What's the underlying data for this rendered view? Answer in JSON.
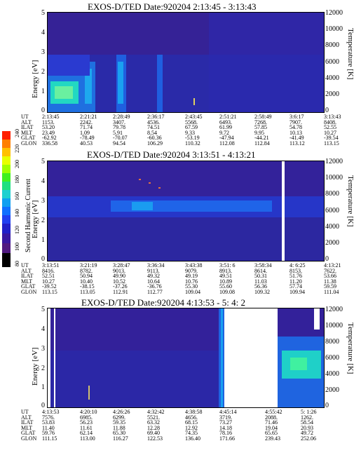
{
  "colorbar": {
    "label": "Second Harmonic Current",
    "ticks": [
      "240",
      "220",
      "200",
      "180",
      "160",
      "140",
      "120",
      "100",
      "80"
    ]
  },
  "panels": [
    {
      "title": "EXOS-D/TED   Date:920204   2:13:45 - 3:13:43",
      "ylabel": "Energy [eV]",
      "y2label": "Temperature [K]",
      "yticks": [
        "5",
        "4",
        "3",
        "2",
        "1",
        "0"
      ],
      "y2ticks": [
        "12000",
        "10000",
        "8000",
        "6000",
        "4000",
        "2000",
        "0"
      ],
      "rows": [
        {
          "name": "UT",
          "values": [
            "2:13:45",
            "2:21:21",
            "2:28:49",
            "2:36:17",
            "2:43:45",
            "2:51:21",
            "2:58:49",
            "3:6:17",
            "3:13:43"
          ]
        },
        {
          "name": "ALT",
          "values": [
            "1153.",
            "2242.",
            "3407.",
            "4536.",
            "5568.",
            "6493.",
            "7268.",
            "7907.",
            "8408."
          ]
        },
        {
          "name": "ILAT",
          "values": [
            "53.20",
            "71.74",
            "79.78",
            "74.51",
            "67.59",
            "61.99",
            "57.85",
            "54.78",
            "52.55"
          ]
        },
        {
          "name": "MLT",
          "values": [
            "23.49",
            "1.09",
            "5.91",
            "8.54",
            "9.33",
            "9.72",
            "9.95",
            "10.13",
            "10.27"
          ]
        },
        {
          "name": "GLAT",
          "values": [
            "-62.92",
            "-78.49",
            "-70.07",
            "-60.36",
            "-53.19",
            "-47.94",
            "-44.21",
            "-41.49",
            "-39.54"
          ]
        },
        {
          "name": "GLON",
          "values": [
            "336.58",
            "40.53",
            "94.54",
            "106.29",
            "110.32",
            "112.08",
            "112.84",
            "113.12",
            "113.15"
          ]
        }
      ]
    },
    {
      "title": "EXOS-D/TED   Date:920204   3:13:51 - 4:13:21",
      "ylabel": "Energy [eV]",
      "y2label": "Temperature [K]",
      "yticks": [
        "5",
        "4",
        "3",
        "2",
        "1",
        "0"
      ],
      "y2ticks": [
        "12000",
        "10000",
        "8000",
        "6000",
        "4000",
        "2000",
        "0"
      ],
      "rows": [
        {
          "name": "UT",
          "values": [
            "3:13:51",
            "3:21:19",
            "3:28:47",
            "3:36:34",
            "3:43:38",
            "3:51: 6",
            "3:58:34",
            "4: 6:25",
            "4:13:21"
          ]
        },
        {
          "name": "ALT",
          "values": [
            "8416.",
            "8782.",
            "9013.",
            "9113.",
            "9079.",
            "8913.",
            "8614.",
            "8153.",
            "7622."
          ]
        },
        {
          "name": "ILAT",
          "values": [
            "52.51",
            "50.94",
            "49.90",
            "49.32",
            "49.19",
            "49.51",
            "50.31",
            "51.76",
            "53.66"
          ]
        },
        {
          "name": "MLT",
          "values": [
            "10.27",
            "10.40",
            "10.52",
            "10.64",
            "10.76",
            "10.89",
            "11.03",
            "11.20",
            "11.38"
          ]
        },
        {
          "name": "GLAT",
          "values": [
            "-39.52",
            "-38.15",
            "-37.26",
            "-36.76",
            "55.30",
            "55.60",
            "56.36",
            "57.74",
            "59.59"
          ]
        },
        {
          "name": "GLON",
          "values": [
            "113.15",
            "113.05",
            "112.91",
            "112.77",
            "109.04",
            "109.08",
            "109.32",
            "109.94",
            "111.04"
          ]
        }
      ]
    },
    {
      "title": "EXOS-D/TED   Date:920204   4:13:53 - 5: 4: 2",
      "ylabel": "Energy [eV]",
      "y2label": "Temperature [K]",
      "yticks": [
        "5",
        "4",
        "3",
        "2",
        "1",
        "0"
      ],
      "y2ticks": [
        "12000",
        "10000",
        "8000",
        "6000",
        "4000",
        "2000",
        "0"
      ],
      "rows": [
        {
          "name": "UT",
          "values": [
            "4:13:53",
            "4:20:10",
            "4:26:26",
            "4:32:42",
            "4:38:58",
            "4:45:14",
            "4:55:42",
            "5: 1:26"
          ]
        },
        {
          "name": "ALT",
          "values": [
            "7576.",
            "6985.",
            "6299.",
            "5521.",
            "4656.",
            "3719.",
            "2088.",
            "1262."
          ]
        },
        {
          "name": "ILAT",
          "values": [
            "53.83",
            "56.23",
            "59.35",
            "63.32",
            "68.15",
            "73.27",
            "71.46",
            "58.54"
          ]
        },
        {
          "name": "MLT",
          "values": [
            "11.40",
            "11.61",
            "11.88",
            "12.28",
            "12.92",
            "14.18",
            "19.04",
            "20.93"
          ]
        },
        {
          "name": "GLAT",
          "values": [
            "59.76",
            "62.14",
            "65.30",
            "69.40",
            "74.35",
            "78.16",
            "65.65",
            "49.72"
          ]
        },
        {
          "name": "GLON",
          "values": [
            "111.15",
            "113.00",
            "116.27",
            "122.53",
            "136.40",
            "171.66",
            "239.43",
            "252.06"
          ]
        }
      ]
    }
  ],
  "chart_data": {
    "type": "heatmap",
    "panels": [
      {
        "title": "EXOS-D/TED   Date:920204   2:13:45 - 3:13:43",
        "xlabel": "UT",
        "ylabel": "Energy [eV]",
        "y2label": "Temperature [K]",
        "ylim": [
          0,
          5
        ],
        "y2lim": [
          0,
          12000
        ]
      },
      {
        "title": "EXOS-D/TED   Date:920204   3:13:51 - 4:13:21",
        "xlabel": "UT",
        "ylabel": "Energy [eV]",
        "y2label": "Temperature [K]",
        "ylim": [
          0,
          5
        ],
        "y2lim": [
          0,
          12000
        ]
      },
      {
        "title": "EXOS-D/TED   Date:920204   4:13:53 - 5: 4: 2",
        "xlabel": "UT",
        "ylabel": "Energy [eV]",
        "y2label": "Temperature [K]",
        "ylim": [
          0,
          5
        ],
        "y2lim": [
          0,
          12000
        ]
      }
    ],
    "colorbar_label": "Second Harmonic Current",
    "colorbar_range": [
      80,
      240
    ],
    "colors": {
      "low": "#3c1a8c",
      "mid": "#1e3ccc",
      "high": "#20e0c8",
      "peak": "#ffffff"
    }
  }
}
